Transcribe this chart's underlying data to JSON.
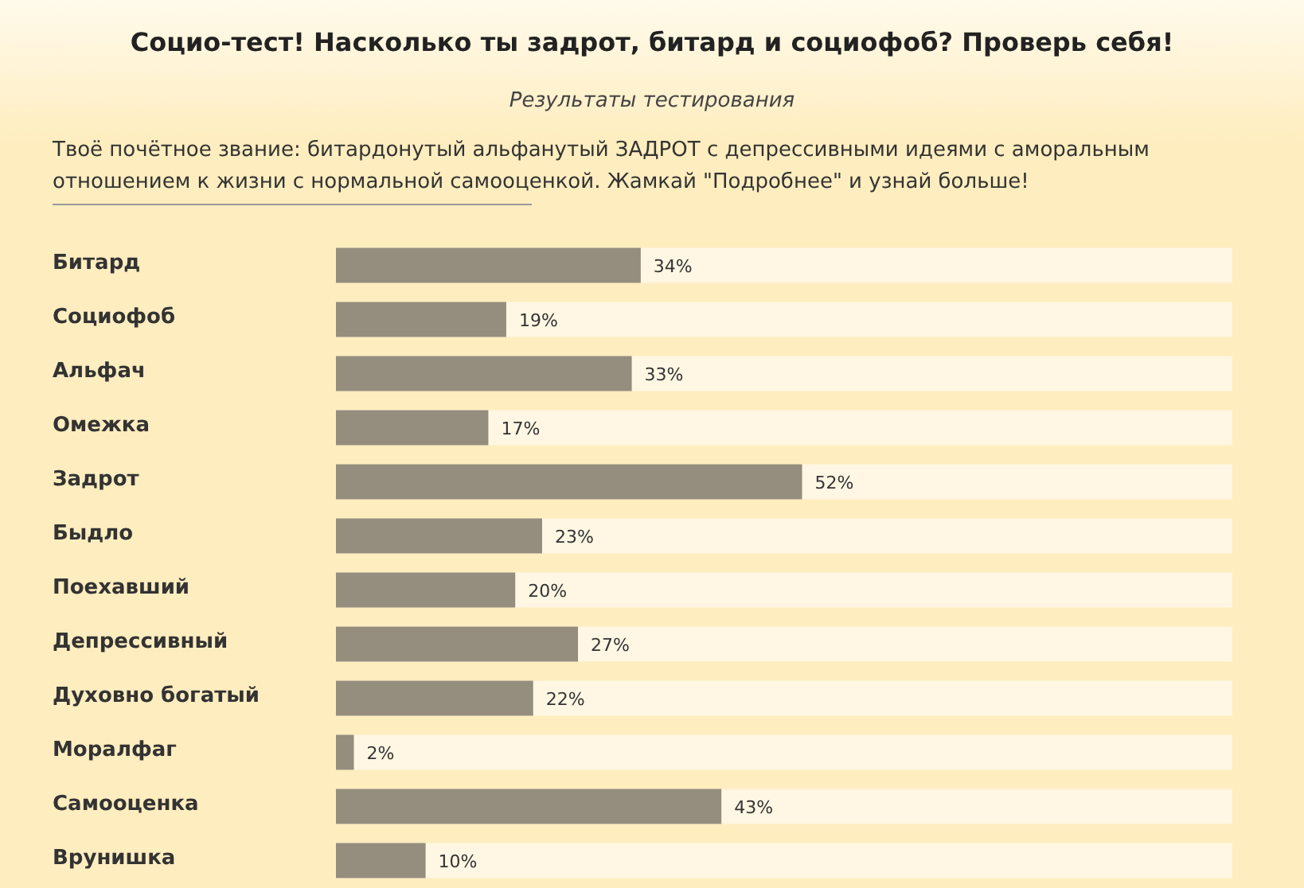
{
  "chart_data": {
    "type": "bar",
    "orientation": "horizontal",
    "title": "Социо-тест! Насколько ты задрот, битард и социофоб? Проверь себя!",
    "subtitle": "Результаты тестирования",
    "annotations": [
      "Твоё почётное звание: битардонутый альфанутый ЗАДРОТ с депрессивными идеями с аморальным отношением к жизни с нормальной самооценкой. Жамкай \"Подробнее\" и узнай больше!"
    ],
    "categories": [
      "Битард",
      "Социофоб",
      "Альфач",
      "Омежка",
      "Задрот",
      "Быдло",
      "Поехавший",
      "Депрессивный",
      "Духовно богатый",
      "Моралфаг",
      "Самооценка",
      "Врунишка"
    ],
    "values": [
      34,
      19,
      33,
      17,
      52,
      23,
      20,
      27,
      22,
      2,
      43,
      10
    ],
    "value_labels": [
      "34%",
      "19%",
      "33%",
      "17%",
      "52%",
      "23%",
      "20%",
      "27%",
      "22%",
      "2%",
      "43%",
      "10%"
    ],
    "color": "#958d7d",
    "xlim": [
      0,
      100
    ],
    "grid": false,
    "legend": false
  }
}
